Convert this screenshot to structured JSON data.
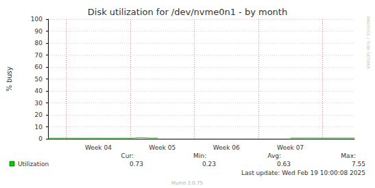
{
  "chart_data": {
    "type": "line",
    "title": "Disk utilization for /dev/nvme0n1 - by month",
    "y_label": "% busy",
    "categories": [
      null,
      null,
      null,
      null,
      null,
      null,
      null,
      null,
      null,
      null,
      null,
      "Week 04",
      null,
      null,
      null,
      null,
      null,
      null,
      null,
      null,
      null,
      null,
      null,
      null,
      null,
      "Week 05",
      null,
      null,
      null,
      null,
      null,
      null,
      null,
      null,
      null,
      null,
      null,
      null,
      null,
      "Week 06",
      null,
      null,
      null,
      null,
      null,
      null,
      null,
      null,
      null,
      null,
      null,
      null,
      null,
      "Week 07",
      null,
      null,
      null,
      null,
      null,
      null,
      null,
      null,
      null,
      null,
      null,
      null,
      null,
      null
    ],
    "series": [
      {
        "name": "Utilization",
        "color": "#00cc00",
        "values": [
          0.5,
          0.5,
          0.5,
          0.55,
          0.6,
          0.5,
          0.5,
          0.5,
          0.5,
          0.5,
          0.55,
          0.5,
          0.5,
          0.5,
          0.5,
          0.5,
          0.5,
          0.55,
          0.5,
          0.6,
          1.0,
          0.9,
          0.6,
          0.5,
          0.7,
          null,
          null,
          null,
          null,
          null,
          null,
          null,
          null,
          null,
          null,
          null,
          null,
          null,
          null,
          null,
          null,
          null,
          null,
          null,
          null,
          null,
          null,
          null,
          null,
          null,
          null,
          null,
          null,
          0.6,
          0.6,
          0.6,
          0.6,
          0.6,
          0.6,
          0.6,
          0.6,
          0.6,
          0.6,
          0.6,
          0.6,
          0.6,
          0.6,
          0.6
        ]
      }
    ],
    "ylim": [
      0,
      100
    ],
    "yticks": [
      0,
      10,
      20,
      30,
      40,
      50,
      60,
      70,
      80,
      90,
      100
    ],
    "grid": true,
    "stats_headers": [
      "Cur:",
      "Min:",
      "Avg:",
      "Max:"
    ],
    "stats": [
      {
        "name": "Utilization",
        "values": [
          0.73,
          0.23,
          0.63,
          7.55
        ]
      }
    ],
    "last_update": "Last update: Wed Feb 19 10:00:08 2025",
    "footer": "Munin 2.0.75",
    "side_text": "RRDTOOL / TOBI OETIKER"
  }
}
